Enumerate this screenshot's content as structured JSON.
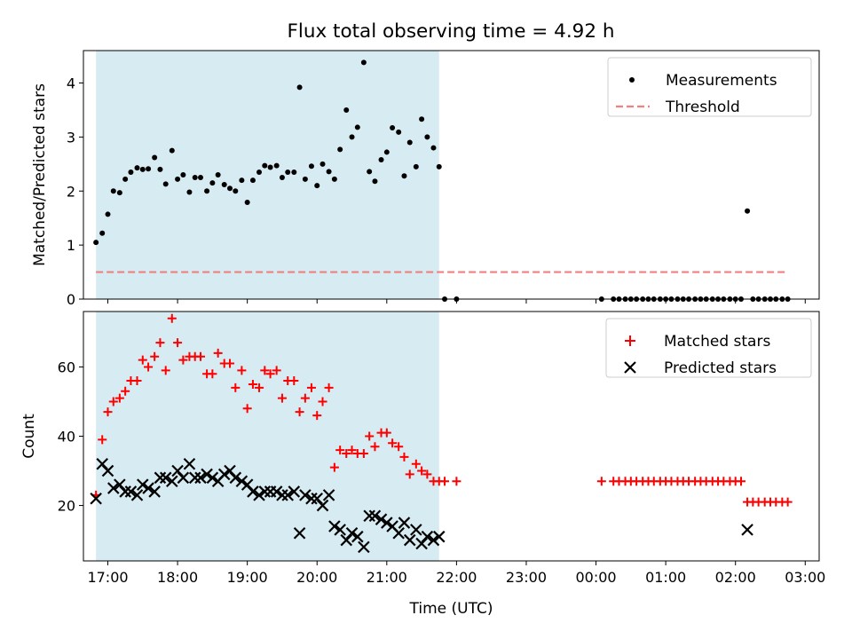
{
  "chart_data": [
    {
      "type": "scatter",
      "title": "Flux total observing time = 4.92 h",
      "ylabel": "Matched/Predicted stars",
      "xlim": [
        16.65,
        27.2
      ],
      "ylim": [
        0,
        4.6
      ],
      "yticks": [
        0,
        1,
        2,
        3,
        4
      ],
      "shaded_span": [
        16.83,
        21.75
      ],
      "legend": {
        "position": "top-right",
        "entries": [
          "Measurements",
          "Threshold"
        ]
      },
      "series": [
        {
          "name": "Measurements",
          "marker": "dot",
          "color": "#000000",
          "x": [
            16.83,
            16.92,
            17.0,
            17.08,
            17.17,
            17.25,
            17.33,
            17.42,
            17.5,
            17.58,
            17.67,
            17.75,
            17.83,
            17.92,
            18.0,
            18.08,
            18.17,
            18.25,
            18.33,
            18.42,
            18.5,
            18.58,
            18.67,
            18.75,
            18.83,
            18.92,
            19.0,
            19.08,
            19.17,
            19.25,
            19.33,
            19.42,
            19.5,
            19.58,
            19.67,
            19.75,
            19.83,
            19.92,
            20.0,
            20.08,
            20.17,
            20.25,
            20.33,
            20.42,
            20.5,
            20.58,
            20.67,
            20.75,
            20.83,
            20.92,
            21.0,
            21.08,
            21.17,
            21.25,
            21.33,
            21.42,
            21.5,
            21.58,
            21.67,
            21.75,
            21.83,
            22.0,
            24.08,
            24.25,
            24.33,
            24.42,
            24.5,
            24.58,
            24.67,
            24.75,
            24.83,
            24.92,
            25.0,
            25.08,
            25.17,
            25.25,
            25.33,
            25.42,
            25.5,
            25.58,
            25.67,
            25.75,
            25.83,
            25.92,
            26.0,
            26.08,
            26.17,
            26.25,
            26.33,
            26.42,
            26.5,
            26.58,
            26.67,
            26.75
          ],
          "y": [
            1.05,
            1.22,
            1.57,
            2.0,
            1.97,
            2.22,
            2.35,
            2.43,
            2.4,
            2.41,
            2.62,
            2.4,
            2.13,
            2.75,
            2.22,
            2.3,
            1.98,
            2.25,
            2.25,
            2.0,
            2.15,
            2.3,
            2.12,
            2.05,
            2.0,
            2.2,
            1.79,
            2.2,
            2.35,
            2.47,
            2.44,
            2.47,
            2.25,
            2.35,
            2.35,
            3.92,
            2.22,
            2.46,
            2.1,
            2.5,
            2.36,
            2.22,
            2.77,
            3.5,
            3.0,
            3.18,
            4.38,
            2.36,
            2.18,
            2.58,
            2.72,
            3.17,
            3.09,
            2.28,
            2.9,
            2.45,
            3.33,
            3.0,
            2.8,
            2.45,
            0.0,
            0.0,
            0.0,
            0.0,
            0.0,
            0.0,
            0.0,
            0.0,
            0.0,
            0.0,
            0.0,
            0.0,
            0.0,
            0.0,
            0.0,
            0.0,
            0.0,
            0.0,
            0.0,
            0.0,
            0.0,
            0.0,
            0.0,
            0.0,
            0.0,
            0.0,
            1.63,
            0.0,
            0.0,
            0.0,
            0.0,
            0.0,
            0.0,
            0.0
          ]
        },
        {
          "name": "Threshold",
          "style": "dashed-line",
          "color": "#f08080",
          "x": [
            16.83,
            26.75
          ],
          "y": [
            0.5,
            0.5
          ]
        }
      ]
    },
    {
      "type": "scatter",
      "ylabel": "Count",
      "xlabel": "Time (UTC)",
      "xlim": [
        16.65,
        27.2
      ],
      "ylim": [
        4,
        76
      ],
      "yticks": [
        20,
        40,
        60
      ],
      "xticks": [
        17,
        18,
        19,
        20,
        21,
        22,
        23,
        24,
        25,
        26,
        27
      ],
      "xtick_labels": [
        "17:00",
        "18:00",
        "19:00",
        "20:00",
        "21:00",
        "22:00",
        "23:00",
        "00:00",
        "01:00",
        "02:00",
        "03:00"
      ],
      "shaded_span": [
        16.83,
        21.75
      ],
      "legend": {
        "position": "top-right",
        "entries": [
          "Matched stars",
          "Predicted stars"
        ]
      },
      "series": [
        {
          "name": "Matched stars",
          "marker": "plus",
          "color": "#ff0000",
          "x": [
            16.83,
            16.92,
            17.0,
            17.08,
            17.17,
            17.25,
            17.33,
            17.42,
            17.5,
            17.58,
            17.67,
            17.75,
            17.83,
            17.92,
            18.0,
            18.08,
            18.17,
            18.25,
            18.33,
            18.42,
            18.5,
            18.58,
            18.67,
            18.75,
            18.83,
            18.92,
            19.0,
            19.08,
            19.17,
            19.25,
            19.33,
            19.42,
            19.5,
            19.58,
            19.67,
            19.75,
            19.83,
            19.92,
            20.0,
            20.08,
            20.17,
            20.25,
            20.33,
            20.42,
            20.5,
            20.58,
            20.67,
            20.75,
            20.83,
            20.92,
            21.0,
            21.08,
            21.17,
            21.25,
            21.33,
            21.42,
            21.5,
            21.58,
            21.67,
            21.75,
            21.83,
            22.0,
            24.08,
            24.25,
            24.33,
            24.42,
            24.5,
            24.58,
            24.67,
            24.75,
            24.83,
            24.92,
            25.0,
            25.08,
            25.17,
            25.25,
            25.33,
            25.42,
            25.5,
            25.58,
            25.67,
            25.75,
            25.83,
            25.92,
            26.0,
            26.08,
            26.17,
            26.25,
            26.33,
            26.42,
            26.5,
            26.58,
            26.67,
            26.75
          ],
          "y": [
            23,
            39,
            47,
            50,
            51,
            53,
            56,
            56,
            62,
            60,
            63,
            67,
            59,
            74,
            67,
            62,
            63,
            63,
            63,
            58,
            58,
            64,
            61,
            61,
            54,
            59,
            48,
            55,
            54,
            59,
            58,
            59,
            51,
            56,
            56,
            47,
            51,
            54,
            46,
            50,
            54,
            31,
            36,
            35,
            36,
            35,
            35,
            40,
            37,
            41,
            41,
            38,
            37,
            34,
            29,
            32,
            30,
            29,
            27,
            27,
            27,
            27,
            27,
            27,
            27,
            27,
            27,
            27,
            27,
            27,
            27,
            27,
            27,
            27,
            27,
            27,
            27,
            27,
            27,
            27,
            27,
            27,
            27,
            27,
            27,
            27,
            21,
            21,
            21,
            21,
            21,
            21,
            21,
            21
          ]
        },
        {
          "name": "Predicted stars",
          "marker": "x",
          "color": "#000000",
          "x": [
            16.83,
            16.92,
            17.0,
            17.08,
            17.17,
            17.25,
            17.33,
            17.42,
            17.5,
            17.58,
            17.67,
            17.75,
            17.83,
            17.92,
            18.0,
            18.08,
            18.17,
            18.25,
            18.33,
            18.42,
            18.5,
            18.58,
            18.67,
            18.75,
            18.83,
            18.92,
            19.0,
            19.08,
            19.17,
            19.25,
            19.33,
            19.42,
            19.5,
            19.58,
            19.67,
            19.75,
            19.83,
            19.92,
            20.0,
            20.08,
            20.17,
            20.25,
            20.33,
            20.42,
            20.5,
            20.58,
            20.67,
            20.75,
            20.83,
            20.92,
            21.0,
            21.08,
            21.17,
            21.25,
            21.33,
            21.42,
            21.5,
            21.58,
            21.67,
            21.75,
            26.17
          ],
          "y": [
            22,
            32,
            30,
            25,
            26,
            24,
            24,
            23,
            26,
            25,
            24,
            28,
            28,
            27,
            30,
            28,
            32,
            28,
            28,
            29,
            28,
            27,
            29,
            30,
            28,
            27,
            26,
            24,
            23,
            24,
            24,
            24,
            23,
            23,
            24,
            12,
            23,
            22,
            22,
            20,
            23,
            14,
            13,
            10,
            12,
            11,
            8,
            17,
            17,
            16,
            15,
            14,
            12,
            15,
            10,
            13,
            9,
            11,
            10,
            11,
            13
          ]
        }
      ]
    }
  ]
}
